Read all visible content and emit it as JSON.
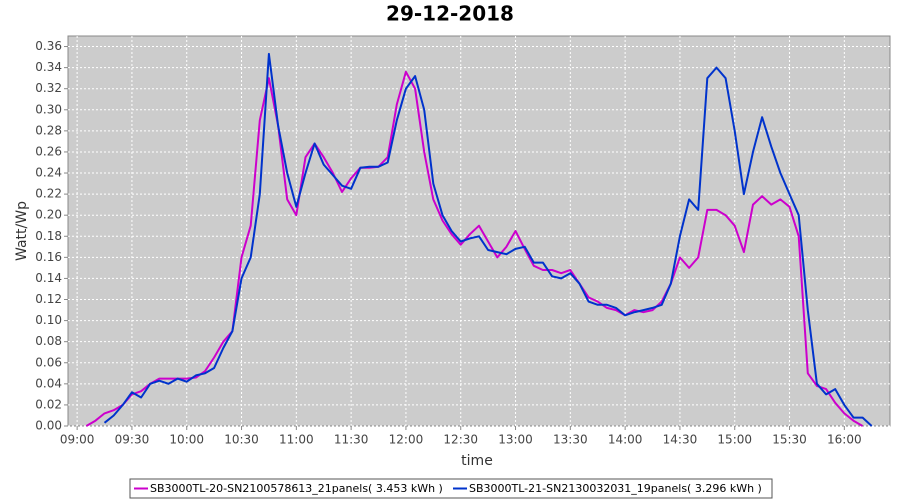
{
  "chart_data": {
    "type": "line",
    "title": "29-12-2018",
    "x_label": "time",
    "y_label": "Watt/Wp",
    "x": [
      "09:05",
      "09:10",
      "09:15",
      "09:20",
      "09:25",
      "09:30",
      "09:35",
      "09:40",
      "09:45",
      "09:50",
      "09:55",
      "10:00",
      "10:05",
      "10:10",
      "10:15",
      "10:20",
      "10:25",
      "10:30",
      "10:35",
      "10:40",
      "10:45",
      "10:50",
      "10:55",
      "11:00",
      "11:05",
      "11:10",
      "11:15",
      "11:20",
      "11:25",
      "11:30",
      "11:35",
      "11:40",
      "11:45",
      "11:50",
      "11:55",
      "12:00",
      "12:05",
      "12:10",
      "12:15",
      "12:20",
      "12:25",
      "12:30",
      "12:35",
      "12:40",
      "12:45",
      "12:50",
      "12:55",
      "13:00",
      "13:05",
      "13:10",
      "13:15",
      "13:20",
      "13:25",
      "13:30",
      "13:35",
      "13:40",
      "13:45",
      "13:50",
      "13:55",
      "14:00",
      "14:05",
      "14:10",
      "14:15",
      "14:20",
      "14:25",
      "14:30",
      "14:35",
      "14:40",
      "14:45",
      "14:50",
      "14:55",
      "15:00",
      "15:05",
      "15:10",
      "15:15",
      "15:20",
      "15:25",
      "15:30",
      "15:35",
      "15:40",
      "15:45",
      "15:50",
      "15:55",
      "16:00",
      "16:05",
      "16:10",
      "16:15"
    ],
    "series": [
      {
        "name": "SB3000TL-20-SN2100578613_21panels( 3.453 kWh )",
        "color": "#cc00cc",
        "values": [
          0.0,
          0.005,
          0.012,
          0.015,
          0.02,
          0.03,
          0.033,
          0.04,
          0.045,
          0.045,
          0.045,
          0.045,
          0.046,
          0.052,
          0.065,
          0.08,
          0.09,
          0.16,
          0.19,
          0.29,
          0.33,
          0.285,
          0.215,
          0.2,
          0.255,
          0.268,
          0.255,
          0.24,
          0.222,
          0.235,
          0.245,
          0.245,
          0.246,
          0.255,
          0.305,
          0.336,
          0.32,
          0.26,
          0.215,
          0.195,
          0.182,
          0.172,
          0.182,
          0.19,
          0.175,
          0.16,
          0.17,
          0.185,
          0.168,
          0.152,
          0.148,
          0.148,
          0.145,
          0.148,
          0.135,
          0.122,
          0.118,
          0.112,
          0.11,
          0.105,
          0.11,
          0.108,
          0.11,
          0.118,
          0.135,
          0.16,
          0.15,
          0.16,
          0.205,
          0.205,
          0.2,
          0.19,
          0.165,
          0.21,
          0.218,
          0.21,
          0.215,
          0.208,
          0.18,
          0.05,
          0.038,
          0.035,
          0.022,
          0.012,
          0.005,
          0.0,
          null
        ]
      },
      {
        "name": "SB3000TL-21-SN2130032031_19panels( 3.296 kWh )",
        "color": "#0033cc",
        "values": [
          null,
          null,
          0.003,
          0.01,
          0.02,
          0.032,
          0.027,
          0.04,
          0.043,
          0.04,
          0.045,
          0.042,
          0.048,
          0.05,
          0.055,
          0.074,
          0.09,
          0.14,
          0.16,
          0.22,
          0.353,
          0.285,
          0.24,
          0.208,
          0.24,
          0.268,
          0.248,
          0.238,
          0.228,
          0.225,
          0.245,
          0.246,
          0.246,
          0.25,
          0.29,
          0.32,
          0.332,
          0.3,
          0.23,
          0.2,
          0.185,
          0.175,
          0.178,
          0.18,
          0.167,
          0.165,
          0.163,
          0.168,
          0.17,
          0.155,
          0.155,
          0.142,
          0.14,
          0.145,
          0.135,
          0.118,
          0.115,
          0.115,
          0.112,
          0.105,
          0.108,
          0.11,
          0.112,
          0.115,
          0.135,
          0.18,
          0.215,
          0.205,
          0.33,
          0.34,
          0.33,
          0.28,
          0.22,
          0.26,
          0.293,
          0.265,
          0.24,
          0.22,
          0.2,
          0.11,
          0.04,
          0.03,
          0.035,
          0.02,
          0.008,
          0.008,
          0.0
        ]
      }
    ],
    "xlim": [
      "08:55",
      "16:25"
    ],
    "xticks": [
      "09:00",
      "09:30",
      "10:00",
      "10:30",
      "11:00",
      "11:30",
      "12:00",
      "12:30",
      "13:00",
      "13:30",
      "14:00",
      "14:30",
      "15:00",
      "15:30",
      "16:00"
    ],
    "ylim": [
      0,
      0.37
    ],
    "yticks": [
      {
        "value": 0,
        "label": "0.00"
      },
      0.02,
      0.04,
      0.06,
      0.08,
      {
        "value": 0.1,
        "label": "0.10"
      },
      0.12,
      0.14,
      0.16,
      0.18,
      {
        "value": 0.2,
        "label": "0.20"
      },
      0.22,
      0.24,
      0.26,
      0.28,
      {
        "value": 0.3,
        "label": "0.30"
      },
      0.32,
      0.34,
      0.36
    ],
    "grid": true,
    "legend": "bottom"
  }
}
